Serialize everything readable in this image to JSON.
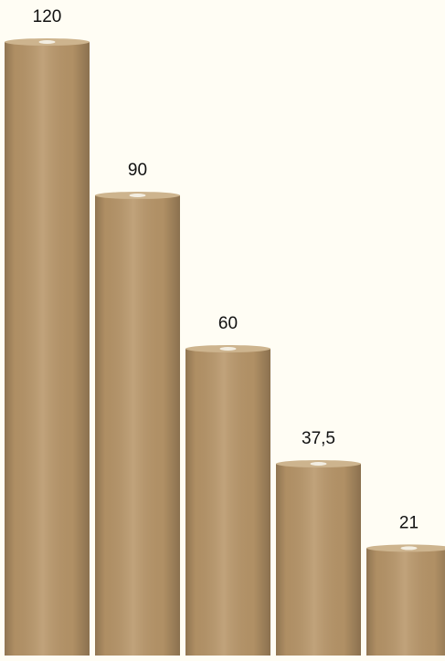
{
  "chart_data": {
    "type": "bar",
    "values": [
      120,
      90,
      60,
      37.5,
      21
    ],
    "value_labels": [
      "120",
      "90",
      "60",
      "37,5",
      "21"
    ],
    "color": "#b89669"
  }
}
